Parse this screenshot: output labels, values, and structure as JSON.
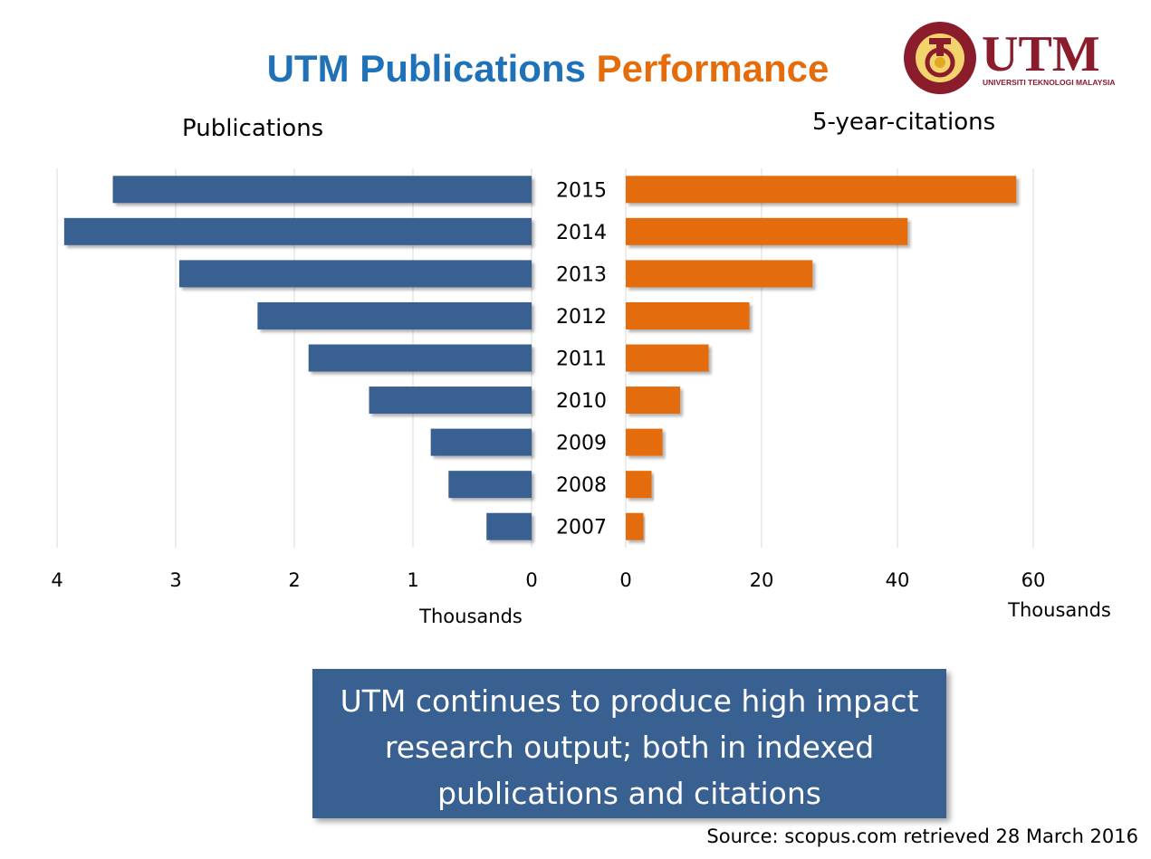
{
  "slide": {
    "title_part1": "UTM Publications",
    "title_part2": "Performance",
    "callout": "UTM continues to produce high impact research output; both in indexed publications and citations",
    "source": "Source: scopus.com retrieved 28 March 2016",
    "logo": {
      "wordmark": "UTM",
      "subtitle": "UNIVERSITI TEKNOLOGI MALAYSIA",
      "ring_text": "DENGAN NAMA TUHAN UNTUK MANUSIA",
      "colors": {
        "maroon": "#8b1c2c",
        "gold": "#e2a821"
      }
    }
  },
  "colors": {
    "publications": "#386090",
    "citations": "#e46c0a",
    "grid": "#d9d9d9"
  },
  "chart_data": [
    {
      "type": "bar",
      "orientation": "horizontal",
      "direction": "reversed",
      "title": "Publications",
      "xlabel": "Thousands",
      "categories": [
        "2015",
        "2014",
        "2013",
        "2012",
        "2011",
        "2010",
        "2009",
        "2008",
        "2007"
      ],
      "values": [
        3.53,
        3.94,
        2.97,
        2.31,
        1.88,
        1.37,
        0.85,
        0.7,
        0.38
      ],
      "xlim": [
        0,
        4
      ],
      "xticks": [
        "0",
        "1",
        "2",
        "3",
        "4"
      ],
      "grid": true
    },
    {
      "type": "bar",
      "orientation": "horizontal",
      "title": "5-year-citations",
      "xlabel": "Thousands",
      "categories": [
        "2015",
        "2014",
        "2013",
        "2012",
        "2011",
        "2010",
        "2009",
        "2008",
        "2007"
      ],
      "values": [
        57.5,
        41.5,
        27.5,
        18.2,
        12.2,
        8.0,
        5.4,
        3.8,
        2.6
      ],
      "xlim": [
        0,
        60
      ],
      "xticks": [
        "0",
        "20",
        "40",
        "60"
      ],
      "grid": true
    }
  ]
}
